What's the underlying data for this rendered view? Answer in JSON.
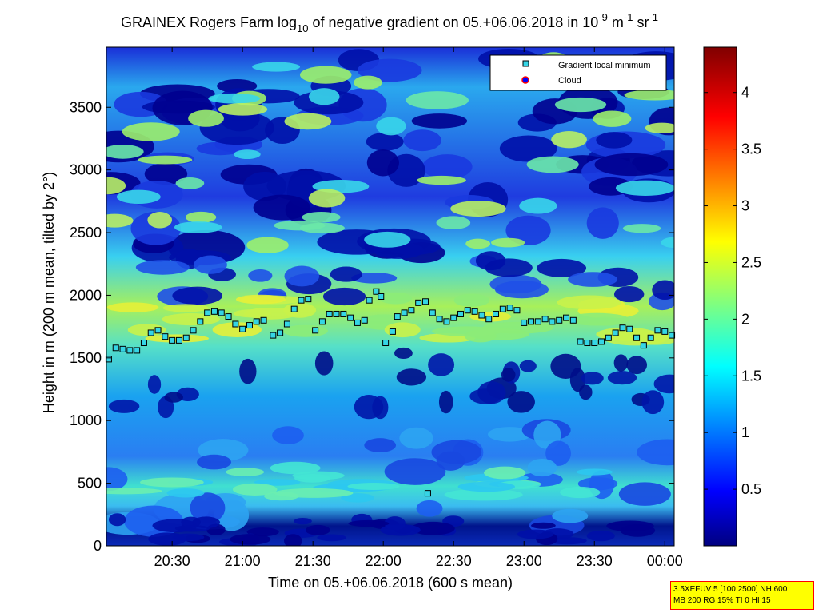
{
  "title": {
    "prefix": "GRAINEX Rogers Farm log",
    "log_sub": "10",
    "middle": " of negative gradient on 05.+06.06.2018 in 10",
    "exp1": "-9",
    "m_unit": " m",
    "exp2": "-1",
    "sr_unit": " sr",
    "exp3": "-1"
  },
  "axes": {
    "xlabel": "Time on 05.+06.06.2018 (600 s mean)",
    "ylabel": "Height in m (200 m mean, tilted by 2°)"
  },
  "legend": {
    "items": [
      {
        "label": "Gradient local minimum",
        "marker": "square",
        "color": "#35d5e5"
      },
      {
        "label": "Cloud",
        "marker": "circle",
        "color": "#0000ff"
      }
    ],
    "placement": "top-right"
  },
  "colorbar": {
    "ticks": [
      "0.5",
      "1",
      "1.5",
      "2",
      "2.5",
      "3",
      "3.5",
      "4"
    ],
    "range": [
      0,
      4.4
    ],
    "colormap": "jet"
  },
  "infobox": {
    "line1": "3.5XEFUV 5 [100 2500] NH 600",
    "line2": "MB 200 RG 15% TI 0 HI 15",
    "background": "#ffff00",
    "border": "#ff0000"
  },
  "chart_data": {
    "type": "heatmap",
    "title": "GRAINEX Rogers Farm log10 of negative gradient on 05.+06.06.2018 in 10-9 m-1 sr-1",
    "xlabel": "Time on 05.+06.06.2018 (600 s mean)",
    "ylabel": "Height in m (200 m mean, tilted by 2°)",
    "x_ticks": [
      "20:30",
      "21:00",
      "21:30",
      "22:00",
      "22:30",
      "23:00",
      "23:30",
      "00:00"
    ],
    "y_ticks": [
      0,
      500,
      1000,
      1500,
      2000,
      2500,
      3000,
      3500
    ],
    "xlim": [
      "20:02",
      "00:04"
    ],
    "ylim": [
      0,
      3980
    ],
    "clim": [
      0,
      4.4
    ],
    "series": [
      {
        "name": "Gradient local minimum",
        "marker": "square",
        "points": [
          [
            "20:03",
            1490
          ],
          [
            "20:06",
            1580
          ],
          [
            "20:09",
            1570
          ],
          [
            "20:12",
            1560
          ],
          [
            "20:15",
            1560
          ],
          [
            "20:18",
            1620
          ],
          [
            "20:21",
            1700
          ],
          [
            "20:24",
            1720
          ],
          [
            "20:27",
            1670
          ],
          [
            "20:30",
            1640
          ],
          [
            "20:33",
            1640
          ],
          [
            "20:36",
            1660
          ],
          [
            "20:39",
            1720
          ],
          [
            "20:42",
            1790
          ],
          [
            "20:45",
            1860
          ],
          [
            "20:48",
            1870
          ],
          [
            "20:51",
            1860
          ],
          [
            "20:54",
            1830
          ],
          [
            "20:57",
            1770
          ],
          [
            "21:00",
            1730
          ],
          [
            "21:03",
            1760
          ],
          [
            "21:06",
            1790
          ],
          [
            "21:09",
            1800
          ],
          [
            "21:13",
            1680
          ],
          [
            "21:16",
            1700
          ],
          [
            "21:19",
            1770
          ],
          [
            "21:22",
            1890
          ],
          [
            "21:25",
            1960
          ],
          [
            "21:28",
            1970
          ],
          [
            "21:31",
            1720
          ],
          [
            "21:34",
            1790
          ],
          [
            "21:37",
            1850
          ],
          [
            "21:40",
            1850
          ],
          [
            "21:43",
            1850
          ],
          [
            "21:46",
            1820
          ],
          [
            "21:49",
            1780
          ],
          [
            "21:52",
            1800
          ],
          [
            "21:54",
            1960
          ],
          [
            "21:57",
            2030
          ],
          [
            "21:59",
            1990
          ],
          [
            "22:01",
            1620
          ],
          [
            "22:04",
            1710
          ],
          [
            "22:06",
            1830
          ],
          [
            "22:09",
            1860
          ],
          [
            "22:12",
            1880
          ],
          [
            "22:15",
            1940
          ],
          [
            "22:18",
            1950
          ],
          [
            "22:21",
            1860
          ],
          [
            "22:24",
            1810
          ],
          [
            "22:27",
            1790
          ],
          [
            "22:30",
            1820
          ],
          [
            "22:33",
            1850
          ],
          [
            "22:36",
            1880
          ],
          [
            "22:39",
            1870
          ],
          [
            "22:42",
            1840
          ],
          [
            "22:45",
            1810
          ],
          [
            "22:48",
            1850
          ],
          [
            "22:51",
            1890
          ],
          [
            "22:54",
            1900
          ],
          [
            "22:57",
            1880
          ],
          [
            "23:00",
            1780
          ],
          [
            "23:03",
            1790
          ],
          [
            "23:06",
            1790
          ],
          [
            "23:09",
            1810
          ],
          [
            "23:12",
            1790
          ],
          [
            "23:15",
            1800
          ],
          [
            "23:18",
            1820
          ],
          [
            "23:21",
            1800
          ],
          [
            "23:24",
            1630
          ],
          [
            "23:27",
            1620
          ],
          [
            "23:30",
            1620
          ],
          [
            "23:33",
            1630
          ],
          [
            "23:36",
            1660
          ],
          [
            "23:39",
            1700
          ],
          [
            "23:42",
            1740
          ],
          [
            "23:45",
            1730
          ],
          [
            "23:48",
            1660
          ],
          [
            "23:51",
            1600
          ],
          [
            "23:54",
            1660
          ],
          [
            "23:57",
            1720
          ],
          [
            "00:00",
            1710
          ],
          [
            "00:03",
            1680
          ],
          [
            "22:19",
            420
          ]
        ]
      },
      {
        "name": "Cloud",
        "marker": "circle",
        "points": []
      }
    ]
  }
}
